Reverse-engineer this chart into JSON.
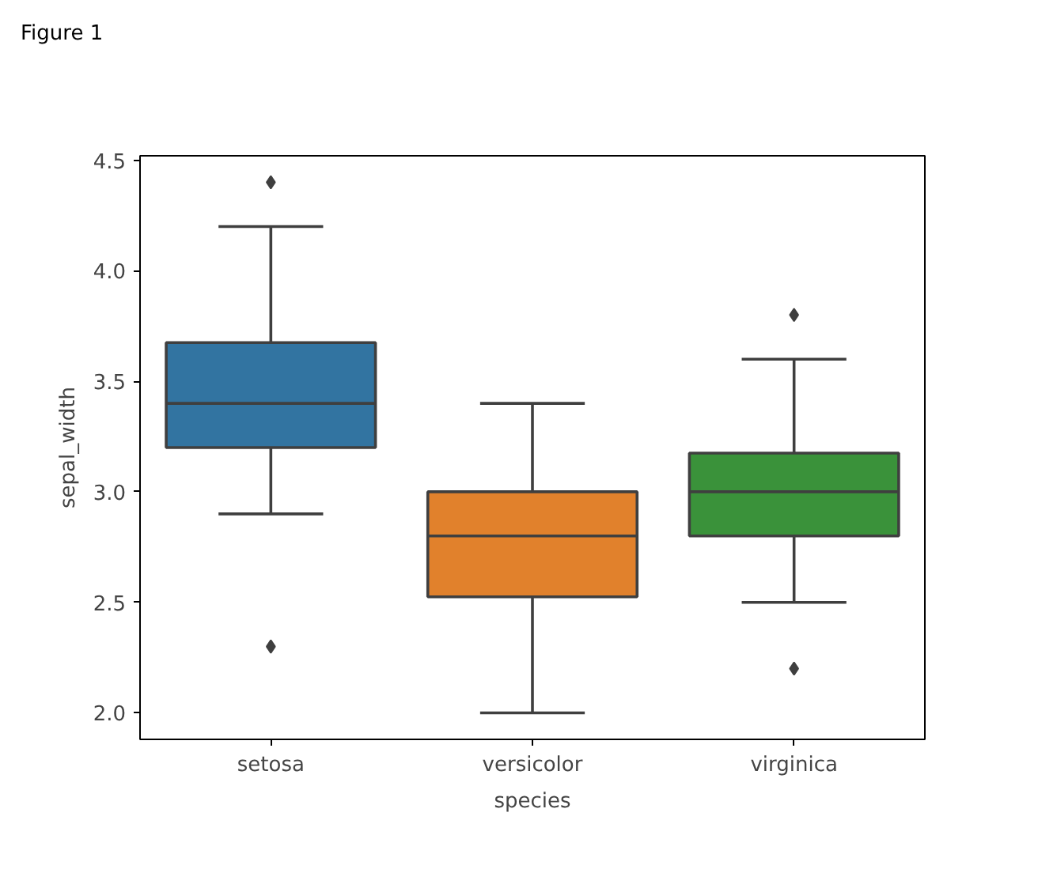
{
  "chart_data": {
    "type": "box",
    "xlabel": "species",
    "ylabel": "sepal_width",
    "categories": [
      "setosa",
      "versicolor",
      "virginica"
    ],
    "colors": [
      "#3274a1",
      "#e1812c",
      "#3a923a"
    ],
    "boxes": [
      {
        "low": 2.9,
        "q1": 3.2,
        "median": 3.4,
        "q3": 3.675,
        "high": 4.2,
        "outliers": [
          4.4,
          2.3
        ]
      },
      {
        "low": 2.0,
        "q1": 2.525,
        "median": 2.8,
        "q3": 3.0,
        "high": 3.4
      },
      {
        "low": 2.5,
        "q1": 2.8,
        "median": 3.0,
        "q3": 3.175,
        "high": 3.6,
        "outliers": [
          3.8,
          2.2
        ]
      }
    ],
    "ylim": [
      1.88,
      4.52
    ],
    "yticks": [
      {
        "value": 2.0,
        "label": "2.0"
      },
      {
        "value": 2.5,
        "label": "2.5"
      },
      {
        "value": 3.0,
        "label": "3.0"
      },
      {
        "value": 3.5,
        "label": "3.5"
      },
      {
        "value": 4.0,
        "label": "4.0"
      },
      {
        "value": 4.5,
        "label": "4.5"
      }
    ],
    "grid": false,
    "marker": "diamond",
    "annotations": [
      "Figure 1"
    ]
  }
}
